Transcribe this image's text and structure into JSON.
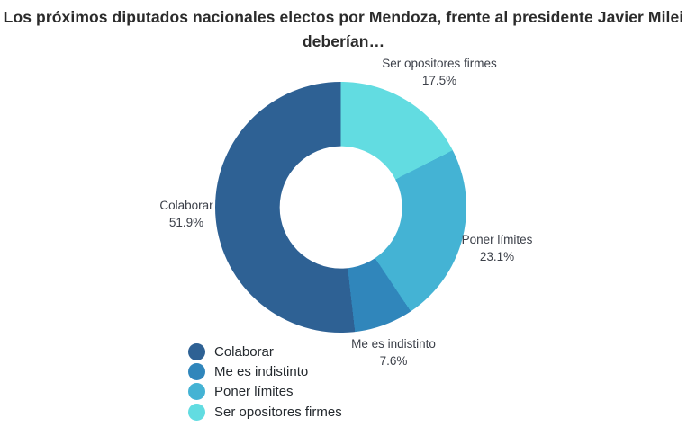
{
  "title": {
    "line1": "Los próximos diputados nacionales electos por Mendoza, frente al presidente Javier Milei",
    "line2": "deberían…"
  },
  "chart_data": {
    "type": "pie",
    "subtype": "donut",
    "title": "Los próximos diputados nacionales electos por Mendoza, frente al presidente Javier Milei deberían…",
    "unit": "%",
    "direction": "clockwise",
    "start_angle_deg": 0,
    "hole_ratio": 0.49,
    "segments": [
      {
        "label": "Ser opositores firmes",
        "value": 17.5,
        "pct_label": "17.5%",
        "color": "#62dce1"
      },
      {
        "label": "Poner límites",
        "value": 23.1,
        "pct_label": "23.1%",
        "color": "#44b3d4"
      },
      {
        "label": "Me es indistinto",
        "value": 7.6,
        "pct_label": "7.6%",
        "color": "#3086bb"
      },
      {
        "label": "Colaborar",
        "value": 51.9,
        "pct_label": "51.9%",
        "color": "#2e6194"
      }
    ],
    "legend_position": "bottom-left",
    "legend": [
      {
        "label": "Colaborar",
        "color": "#2e6194"
      },
      {
        "label": "Me es indistinto",
        "color": "#3086bb"
      },
      {
        "label": "Poner límites",
        "color": "#44b3d4"
      },
      {
        "label": "Ser opositores firmes",
        "color": "#62dce1"
      }
    ]
  }
}
